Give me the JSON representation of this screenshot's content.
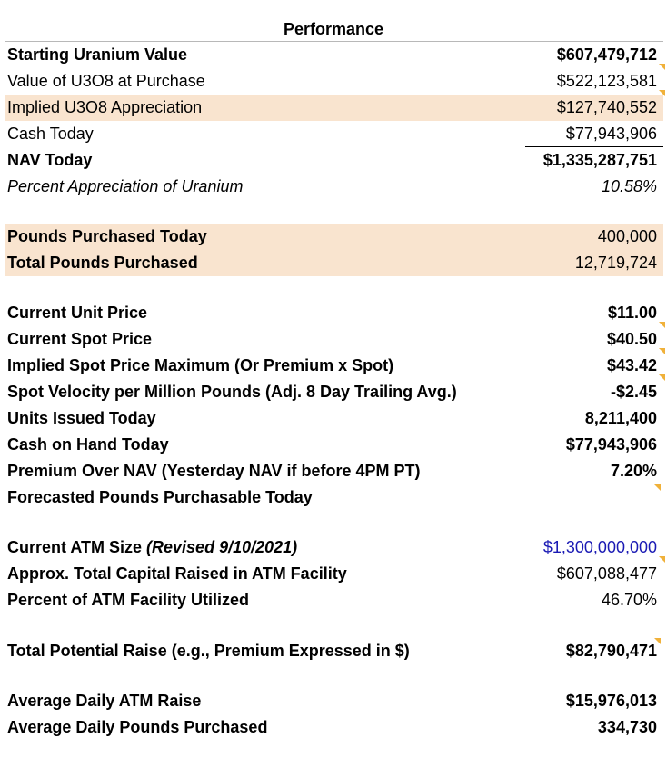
{
  "title": "Performance",
  "performance": [
    {
      "label": "Starting Uranium Value",
      "value": "$607,479,712"
    },
    {
      "label": "Value of U3O8 at Purchase",
      "value": "$522,123,581"
    },
    {
      "label": "Implied U3O8 Appreciation",
      "value": "$127,740,552"
    },
    {
      "label": "Cash Today",
      "value": "$77,943,906"
    },
    {
      "label": "NAV Today",
      "value": "$1,335,287,751"
    },
    {
      "label": "Percent Appreciation of Uranium",
      "value": "10.58%"
    }
  ],
  "pounds": [
    {
      "label": "Pounds Purchased Today",
      "value": "400,000"
    },
    {
      "label": "Total Pounds Purchased",
      "value": "12,719,724"
    }
  ],
  "market": [
    {
      "label": "Current Unit Price",
      "value": "$11.00"
    },
    {
      "label": "Current Spot Price",
      "value": "$40.50"
    },
    {
      "label": "Implied Spot Price Maximum (Or Premium x Spot)",
      "value": "$43.42"
    },
    {
      "label": "Spot Velocity per Million Pounds (Adj. 8 Day Trailing Avg.)",
      "value": "-$2.45"
    },
    {
      "label": "Units Issued Today",
      "value": "8,211,400"
    },
    {
      "label": "Cash on Hand Today",
      "value": "$77,943,906"
    },
    {
      "label": "Premium Over NAV (Yesterday NAV if before 4PM PT)",
      "value": "7.20%"
    },
    {
      "label": "Forecasted Pounds Purchasable Today",
      "value": ""
    }
  ],
  "atm": [
    {
      "label": "Current ATM Size",
      "note": "(Revised 9/10/2021)",
      "value": "$1,300,000,000"
    },
    {
      "label": "Approx. Total Capital Raised in ATM Facility",
      "value": "$607,088,477"
    },
    {
      "label": "Percent of ATM Facility Utilized",
      "value": "46.70%"
    }
  ],
  "potential": {
    "label": "Total Potential Raise (e.g., Premium Expressed in $)",
    "value": "$82,790,471"
  },
  "averages": [
    {
      "label": "Average Daily ATM Raise",
      "value": "$15,976,013"
    },
    {
      "label": "Average Daily Pounds Purchased",
      "value": "334,730"
    }
  ],
  "colors": {
    "highlight": "#f9e4cf",
    "blue_value": "#1a1ab4",
    "comment_marker": "#f0b13a"
  }
}
